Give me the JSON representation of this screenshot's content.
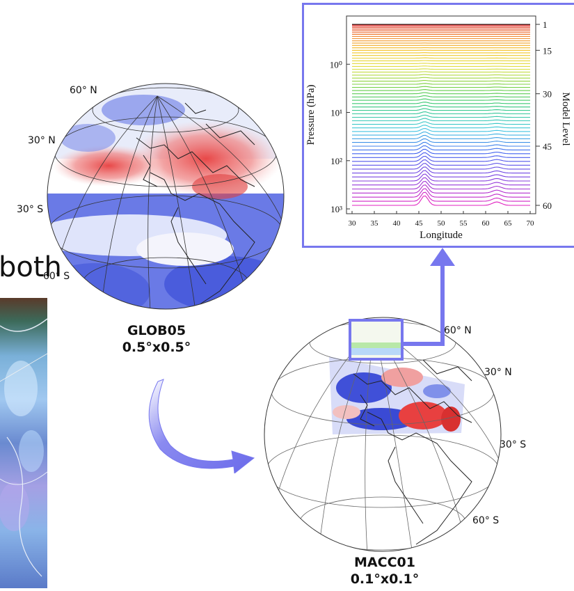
{
  "partial_word": "both",
  "globe_left": {
    "lat_labels": [
      "60° N",
      "30° N",
      "30° S",
      "60° S"
    ],
    "caption_line1": "GLOB05",
    "caption_line2": "0.5°x0.5°"
  },
  "globe_right": {
    "lat_labels": [
      "60° N",
      "30° N",
      "30° S",
      "60° S"
    ],
    "caption_line1": "MACC01",
    "caption_line2": "0.1°x0.1°"
  },
  "chart_data": {
    "type": "line",
    "xlabel": "Longitude",
    "ylabel": "Pressure (hPa)",
    "y2label": "Model Level",
    "x_ticks": [
      "30",
      "35",
      "40",
      "45",
      "50",
      "55",
      "60",
      "65",
      "70"
    ],
    "y_ticks": [
      "10⁰",
      "10¹",
      "10²",
      "10³"
    ],
    "y2_ticks": [
      "1",
      "15",
      "30",
      "45",
      "60"
    ],
    "xlim": [
      30,
      70
    ],
    "ylim_log10": [
      -1.0,
      3.1
    ],
    "yscale": "log",
    "levels": 60,
    "grid": false,
    "colors": [
      "#000000",
      "#e03030",
      "#f08030",
      "#f4c020",
      "#e0e040",
      "#70d040",
      "#30c880",
      "#40c8e0",
      "#4060f0",
      "#8040e0",
      "#e020c0"
    ]
  },
  "colors": {
    "accent": "#7777ee",
    "warm": "#e84040",
    "cool": "#4a5ce0"
  }
}
